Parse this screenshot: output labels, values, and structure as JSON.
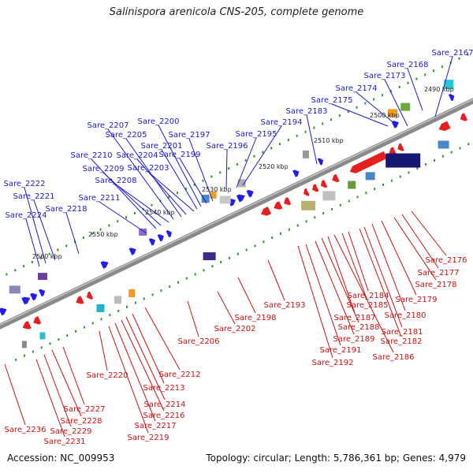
{
  "header": {
    "title": "Salinispora arenicola CNS-205, complete genome"
  },
  "footer": {
    "accession": "Accession: NC_009953",
    "summary": "Topology: circular; Length: 5,786,361 bp; Genes: 4,979"
  },
  "colors": {
    "forward_gene": "#1f1fe6",
    "reverse_gene": "#e61f1f",
    "forward_label": "#1a1acc",
    "reverse_label": "#cc1111",
    "backbone": "#8a8a8a",
    "dots": "#2a9a2a"
  },
  "ticks": [
    {
      "label": "2490 kbp"
    },
    {
      "label": "2500 kbp"
    },
    {
      "label": "2510 kbp"
    },
    {
      "label": "2520 kbp"
    },
    {
      "label": "2530 kbp"
    },
    {
      "label": "2540 kbp"
    },
    {
      "label": "2550 kbp"
    },
    {
      "label": "2560 kbp"
    }
  ],
  "forward_labels": [
    "Sare_2167",
    "Sare_2168",
    "Sare_2173",
    "Sare_2174",
    "Sare_2175",
    "Sare_2183",
    "Sare_2194",
    "Sare_2195",
    "Sare_2196",
    "Sare_2197",
    "Sare_2199",
    "Sare_2200",
    "Sare_2201",
    "Sare_2203",
    "Sare_2204",
    "Sare_2205",
    "Sare_2207",
    "Sare_2208",
    "Sare_2209",
    "Sare_2210",
    "Sare_2211",
    "Sare_2218",
    "Sare_2221",
    "Sare_2222",
    "Sare_2224"
  ],
  "reverse_labels": [
    "Sare_2176",
    "Sare_2177",
    "Sare_2178",
    "Sare_2179",
    "Sare_2180",
    "Sare_2181",
    "Sare_2182",
    "Sare_2184",
    "Sare_2185",
    "Sare_2186",
    "Sare_2187",
    "Sare_2188",
    "Sare_2189",
    "Sare_2191",
    "Sare_2192",
    "Sare_2193",
    "Sare_2198",
    "Sare_2202",
    "Sare_2206",
    "Sare_2212",
    "Sare_2213",
    "Sare_2214",
    "Sare_2216",
    "Sare_2217",
    "Sare_2219",
    "Sare_2220",
    "Sare_2227",
    "Sare_2228",
    "Sare_2229",
    "Sare_2231",
    "Sare_2236"
  ]
}
